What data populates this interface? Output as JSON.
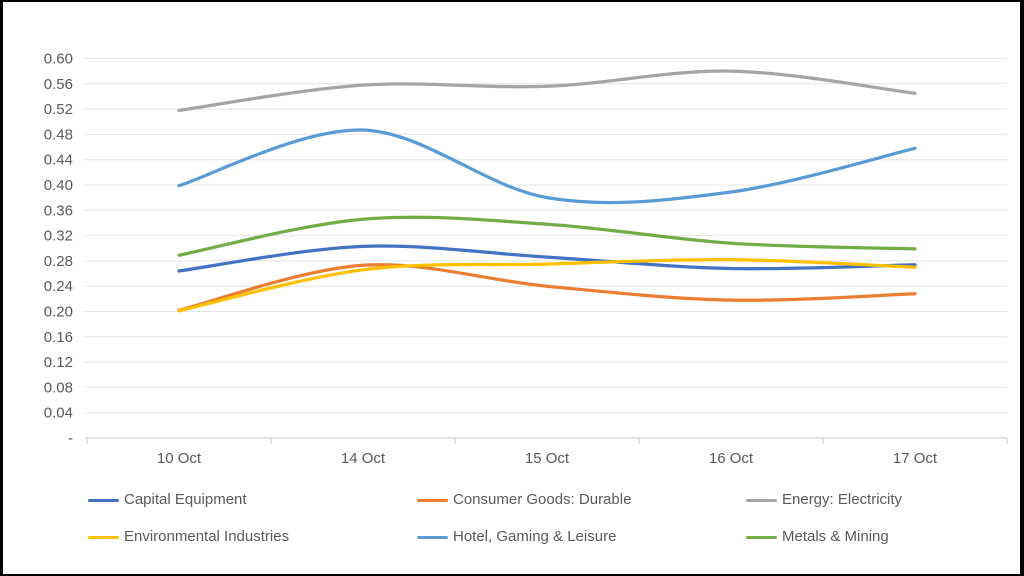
{
  "window": {
    "frame_color": "#000000",
    "canvas_color": "#ffffff"
  },
  "chart_data": {
    "type": "line",
    "smooth": true,
    "title": "",
    "xlabel": "",
    "ylabel": "",
    "x": [
      "10 Oct",
      "14 Oct",
      "15 Oct",
      "16 Oct",
      "17 Oct"
    ],
    "series": [
      {
        "name": "Capital Equipment",
        "color": "#4472C4",
        "values": [
          0.264,
          0.303,
          0.286,
          0.268,
          0.274
        ]
      },
      {
        "name": "Consumer Goods: Durable",
        "color": "#ED7D31",
        "values": [
          0.202,
          0.273,
          0.24,
          0.218,
          0.228
        ]
      },
      {
        "name": "Energy: Electricity",
        "color": "#A5A5A5",
        "values": [
          0.518,
          0.558,
          0.556,
          0.58,
          0.545
        ]
      },
      {
        "name": "Environmental Industries",
        "color": "#FFC000",
        "values": [
          0.201,
          0.266,
          0.275,
          0.282,
          0.27
        ]
      },
      {
        "name": "Hotel, Gaming & Leisure",
        "color": "#5B9BD5",
        "values": [
          0.399,
          0.487,
          0.38,
          0.389,
          0.458
        ]
      },
      {
        "name": "Metals & Mining",
        "color": "#70AD47",
        "values": [
          0.289,
          0.346,
          0.338,
          0.308,
          0.299
        ]
      }
    ],
    "ylim": [
      0,
      0.6
    ],
    "ytick_step": 0.04,
    "ytick_labels": [
      "-",
      "0.04",
      "0.08",
      "0.12",
      "0.16",
      "0.20",
      "0.24",
      "0.28",
      "0.32",
      "0.36",
      "0.40",
      "0.44",
      "0.48",
      "0.52",
      "0.56",
      "0.60"
    ],
    "grid": "horizontal",
    "legend_position": "bottom",
    "colors": {
      "grid_line": "#E4E4E4",
      "axis_line": "#C9C9C9",
      "tick_text": "#595959",
      "legend_text": "#595959"
    }
  }
}
